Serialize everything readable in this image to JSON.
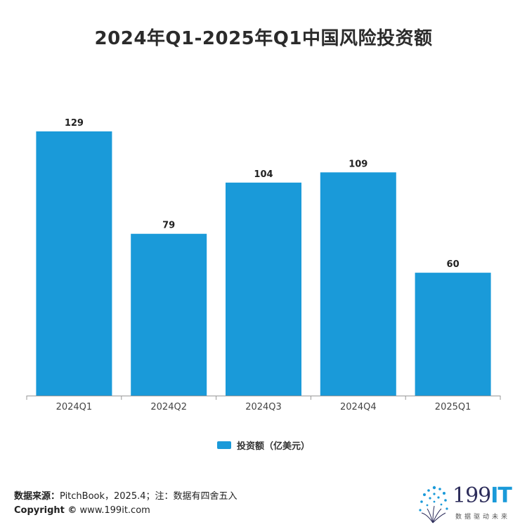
{
  "chart_data": {
    "type": "bar",
    "title": "2024年Q1-2025年Q1中国风险投资额",
    "categories": [
      "2024Q1",
      "2024Q2",
      "2024Q3",
      "2024Q4",
      "2025Q1"
    ],
    "series": [
      {
        "name": "投资额（亿美元）",
        "values": [
          129,
          79,
          104,
          109,
          60
        ],
        "color": "#1a9ad9"
      }
    ],
    "data_labels": [
      "129",
      "79",
      "104",
      "109",
      "60"
    ],
    "ylim": [
      0,
      140
    ],
    "grid": false,
    "legend_position": "bottom-center"
  },
  "footer": {
    "source_label": "数据来源：",
    "source_text": "PitchBook，2025.4；注：数据有四舍五入",
    "copyright_label": "Copyright ©",
    "copyright_text": " www.199it.com"
  },
  "logo": {
    "name_digits": "199",
    "name_letters": "IT",
    "slogan": "数据驱动未来",
    "accent_color": "#1a9ad9"
  }
}
